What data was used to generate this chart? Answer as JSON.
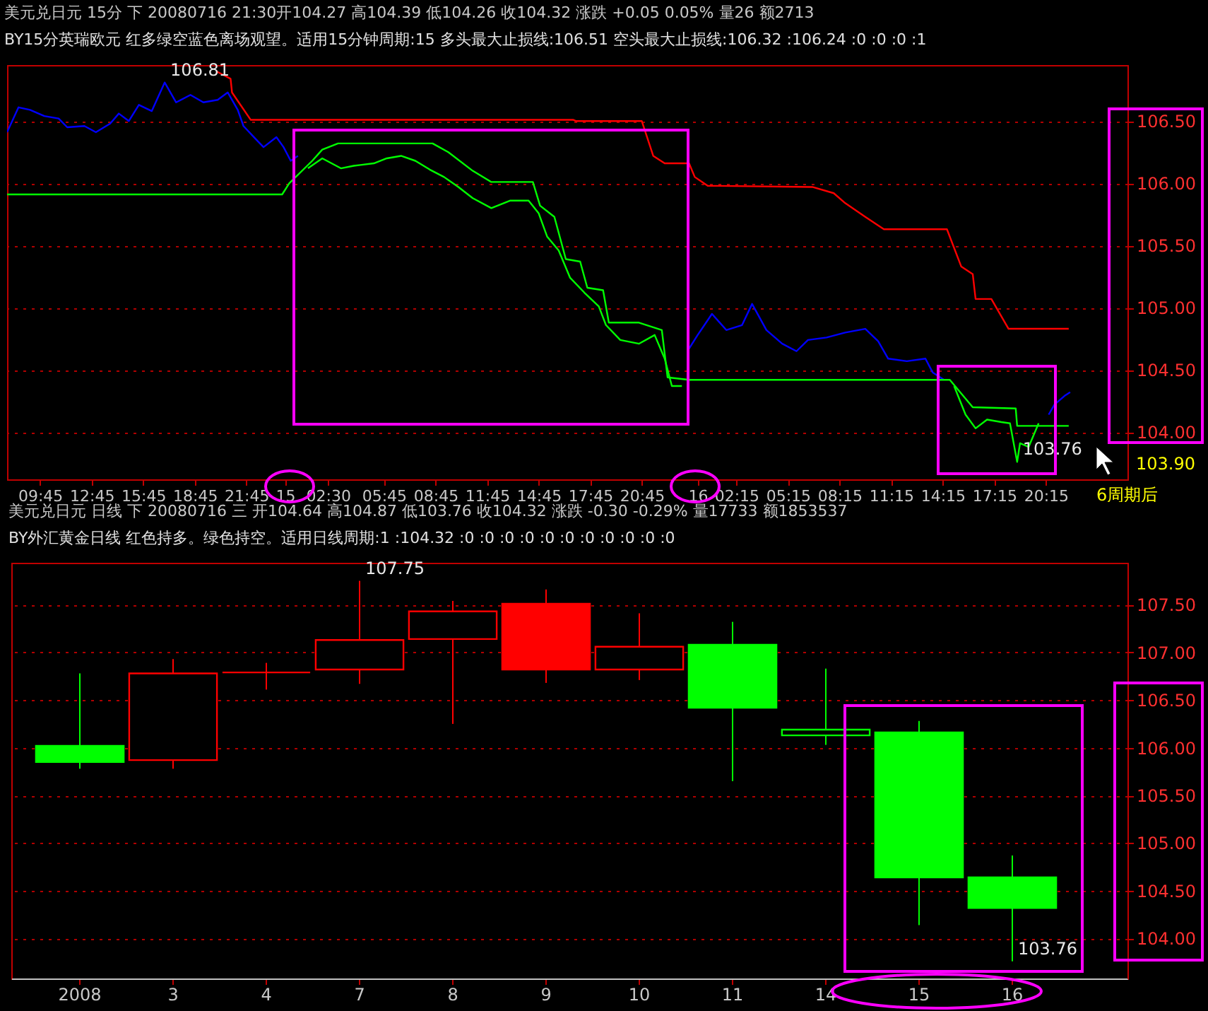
{
  "chart_data": [
    {
      "type": "line",
      "title": "美元兑日元 15分 下 20080716 21:30开104.27 高104.39 低104.26 收104.32 涨跌 +0.05 0.05% 量26 额2713",
      "subtitle": "BY15分英瑞欧元 红多绿空蓝色离场观望。适用15分钟周期:15 多头最大止损线:106.51 空头最大止损线:106.32 :106.24 :0 :0 :0 :1",
      "xlim": [
        "2008-07-14T07:50",
        "2008-07-17T01:00"
      ],
      "xticks": [
        {
          "value": "2008-07-14T09:45",
          "label": "09:45"
        },
        {
          "value": "2008-07-14T12:45",
          "label": "12:45"
        },
        {
          "value": "2008-07-14T15:45",
          "label": "15:45"
        },
        {
          "value": "2008-07-14T18:45",
          "label": "18:45"
        },
        {
          "value": "2008-07-14T21:45",
          "label": "21:45"
        },
        {
          "value": "2008-07-15",
          "label": "15"
        },
        {
          "value": "2008-07-15T02:30",
          "label": "02:30"
        },
        {
          "value": "2008-07-15T05:45",
          "label": "05:45"
        },
        {
          "value": "2008-07-15T08:45",
          "label": "08:45"
        },
        {
          "value": "2008-07-15T11:45",
          "label": "11:45"
        },
        {
          "value": "2008-07-15T14:45",
          "label": "14:45"
        },
        {
          "value": "2008-07-15T17:45",
          "label": "17:45"
        },
        {
          "value": "2008-07-15T20:45",
          "label": "20:45"
        },
        {
          "value": "2008-07-16",
          "label": "16"
        },
        {
          "value": "2008-07-16T02:15",
          "label": "02:15"
        },
        {
          "value": "2008-07-16T05:15",
          "label": "05:15"
        },
        {
          "value": "2008-07-16T08:15",
          "label": "08:15"
        },
        {
          "value": "2008-07-16T11:15",
          "label": "11:15"
        },
        {
          "value": "2008-07-16T14:15",
          "label": "14:15"
        },
        {
          "value": "2008-07-16T17:15",
          "label": "17:15"
        },
        {
          "value": "2008-07-16T20:15",
          "label": "20:15"
        }
      ],
      "ylim": [
        103.62,
        106.95
      ],
      "yticks": [
        {
          "value": 104,
          "label": "104.00"
        },
        {
          "value": 104.5,
          "label": "104.50"
        },
        {
          "value": 105,
          "label": "105.00"
        },
        {
          "value": 105.5,
          "label": "105.50"
        },
        {
          "value": 106,
          "label": "106.00"
        },
        {
          "value": 106.5,
          "label": "106.50"
        }
      ],
      "grid": "y",
      "annotations": [
        {
          "text": "106.81",
          "x": "2008-07-14T17:00",
          "y": 106.81
        },
        {
          "text": "103.76",
          "x": "2008-07-16T18:35",
          "y": 103.76
        },
        "103.90",
        "6周期后"
      ],
      "series": [
        {
          "color": "#0000ff",
          "x": [
            "2008-07-14T07:50",
            "2008-07-14T08:30",
            "2008-07-14T09:10",
            "2008-07-14T10:00",
            "2008-07-14T10:50",
            "2008-07-14T11:20",
            "2008-07-14T12:20",
            "2008-07-14T13:00",
            "2008-07-14T13:50",
            "2008-07-14T14:20",
            "2008-07-14T14:55",
            "2008-07-14T15:30",
            "2008-07-14T16:15",
            "2008-07-14T17:00",
            "2008-07-14T17:40",
            "2008-07-14T18:30",
            "2008-07-14T19:15",
            "2008-07-14T20:05",
            "2008-07-14T20:40",
            "2008-07-14T21:15",
            "2008-07-14T21:35",
            "2008-07-14T22:20",
            "2008-07-14T22:45",
            "2008-07-14T23:30",
            "2008-07-14T23:55",
            "2008-07-15T00:20",
            "2008-07-15T00:45"
          ],
          "values": [
            106.41,
            106.61,
            106.59,
            106.54,
            106.52,
            106.45,
            106.46,
            106.41,
            106.48,
            106.56,
            106.5,
            106.63,
            106.58,
            106.81,
            106.65,
            106.71,
            106.65,
            106.67,
            106.73,
            106.59,
            106.46,
            106.35,
            106.29,
            106.37,
            106.29,
            106.18,
            106.22
          ]
        },
        {
          "color": "#00ff00",
          "x": [
            "2008-07-15T01:20",
            "2008-07-15T02:10",
            "2008-07-15T03:15",
            "2008-07-15T04:00",
            "2008-07-15T05:10",
            "2008-07-15T05:55",
            "2008-07-15T06:45",
            "2008-07-15T07:35",
            "2008-07-15T08:25",
            "2008-07-15T09:15",
            "2008-07-15T10:05",
            "2008-07-15T10:55",
            "2008-07-15T12:00",
            "2008-07-15T13:05",
            "2008-07-15T14:10",
            "2008-07-15T14:45",
            "2008-07-15T15:15",
            "2008-07-15T15:55",
            "2008-07-15T16:35",
            "2008-07-15T17:25",
            "2008-07-15T18:15",
            "2008-07-15T18:40",
            "2008-07-15T19:30",
            "2008-07-15T20:35",
            "2008-07-15T21:30",
            "2008-07-15T22:05",
            "2008-07-15T22:30",
            "2008-07-15T23:05"
          ],
          "values": [
            106.12,
            106.2,
            106.12,
            106.14,
            106.16,
            106.2,
            106.22,
            106.18,
            106.11,
            106.05,
            105.97,
            105.88,
            105.8,
            105.86,
            105.86,
            105.76,
            105.57,
            105.46,
            105.24,
            105.12,
            105.01,
            104.86,
            104.74,
            104.71,
            104.78,
            104.59,
            104.37,
            104.37
          ]
        },
        {
          "color": "#0000ff",
          "x": [
            "2008-07-15T23:30",
            "2008-07-16T00:00",
            "2008-07-16T00:50",
            "2008-07-16T01:40",
            "2008-07-16T02:35",
            "2008-07-16T03:10",
            "2008-07-16T04:00",
            "2008-07-16T04:55",
            "2008-07-16T05:45",
            "2008-07-16T06:25",
            "2008-07-16T07:30",
            "2008-07-16T08:35",
            "2008-07-16T09:45",
            "2008-07-16T10:30",
            "2008-07-16T11:05",
            "2008-07-16T12:10",
            "2008-07-16T13:15",
            "2008-07-16T13:40",
            "2008-07-16T14:20"
          ],
          "values": [
            104.67,
            104.78,
            104.95,
            104.82,
            104.86,
            105.03,
            104.82,
            104.71,
            104.65,
            104.74,
            104.76,
            104.8,
            104.83,
            104.73,
            104.59,
            104.57,
            104.59,
            104.48,
            104.42
          ]
        },
        {
          "color": "#00ff00",
          "x": [
            "2008-07-16T14:55",
            "2008-07-16T15:35",
            "2008-07-16T16:10",
            "2008-07-16T16:50",
            "2008-07-16T17:40",
            "2008-07-16T18:10",
            "2008-07-16T18:35",
            "2008-07-16T18:45",
            "2008-07-16T19:15",
            "2008-07-16T19:50"
          ],
          "values": [
            104.37,
            104.14,
            104.03,
            104.1,
            104.08,
            104.07,
            103.76,
            103.91,
            103.88,
            104.07
          ]
        },
        {
          "color": "#0000ff",
          "x": [
            "2008-07-16T20:25",
            "2008-07-16T20:45",
            "2008-07-16T21:20",
            "2008-07-16T21:40"
          ],
          "values": [
            104.14,
            104.22,
            104.29,
            104.32
          ]
        },
        {
          "color": "#ff0000",
          "x": [
            "2008-07-14T20:00",
            "2008-07-14T20:50",
            "2008-07-14T20:55",
            "2008-07-14T22:00",
            "2008-07-15T16:45",
            "2008-07-15T16:55",
            "2008-07-15T20:45",
            "2008-07-15T21:25",
            "2008-07-15T22:05",
            "2008-07-15T23:30",
            "2008-07-15T23:50",
            "2008-07-16T00:35",
            "2008-07-16T06:40",
            "2008-07-16T07:55",
            "2008-07-16T08:35",
            "2008-07-16T09:45",
            "2008-07-16T10:50",
            "2008-07-16T14:30",
            "2008-07-16T15:20",
            "2008-07-16T16:00",
            "2008-07-16T16:10",
            "2008-07-16T17:05",
            "2008-07-16T18:05",
            "2008-07-16T21:35"
          ],
          "values": [
            106.9,
            106.84,
            106.73,
            106.51,
            106.51,
            106.5,
            106.5,
            106.22,
            106.16,
            106.16,
            106.05,
            105.98,
            105.97,
            105.92,
            105.84,
            105.73,
            105.63,
            105.63,
            105.33,
            105.27,
            105.07,
            105.07,
            104.83,
            104.83
          ]
        },
        {
          "color": "#00ff00",
          "x": [
            "2008-07-14T07:50",
            "2008-07-14T23:50",
            "2008-07-15T00:15",
            "2008-07-15T01:35",
            "2008-07-15T02:10",
            "2008-07-15T03:05",
            "2008-07-15T08:35",
            "2008-07-15T09:30",
            "2008-07-15T10:55",
            "2008-07-15T12:00",
            "2008-07-15T14:25",
            "2008-07-15T14:50",
            "2008-07-15T15:40",
            "2008-07-15T16:20",
            "2008-07-15T17:10",
            "2008-07-15T17:35",
            "2008-07-15T18:30",
            "2008-07-15T18:50",
            "2008-07-15T20:35",
            "2008-07-15T21:55",
            "2008-07-15T22:15",
            "2008-07-15T23:30",
            "2008-07-16T14:40",
            "2008-07-16T16:00",
            "2008-07-16T18:30",
            "2008-07-16T18:35",
            "2008-07-16T21:35"
          ],
          "values": [
            105.91,
            105.91,
            106.0,
            106.18,
            106.27,
            106.32,
            106.32,
            106.25,
            106.1,
            106.01,
            106.01,
            105.82,
            105.73,
            105.39,
            105.37,
            105.16,
            105.14,
            104.88,
            104.88,
            104.82,
            104.44,
            104.42,
            104.42,
            104.2,
            104.19,
            104.05,
            104.05
          ]
        }
      ]
    },
    {
      "type": "candlestick",
      "title": "美元兑日元 日线 下 20080716 三 开104.64 高104.87 低103.76 收104.32 涨跌 -0.30 -0.29% 量17733 额1853537",
      "subtitle": "BY外汇黄金日线 红色持多。绿色持空。适用日线周期:1 :104.32 :0 :0 :0 :0 :0 :0 :0 :0 :0 :0 :0",
      "categories": [
        "2008",
        "3",
        "4",
        "7",
        "8",
        "9",
        "10",
        "11",
        "14",
        "15",
        "16"
      ],
      "ohlc": [
        [
          106.02,
          106.78,
          105.78,
          105.85
        ],
        [
          105.87,
          106.93,
          105.78,
          106.78
        ],
        [
          106.79,
          106.89,
          106.61,
          106.79
        ],
        [
          106.82,
          107.75,
          106.67,
          107.13
        ],
        [
          107.14,
          107.54,
          106.25,
          107.43
        ],
        [
          107.51,
          107.66,
          106.68,
          106.82
        ],
        [
          106.82,
          107.41,
          106.71,
          107.06
        ],
        [
          107.08,
          107.32,
          105.65,
          106.42
        ],
        [
          106.13,
          106.83,
          106.03,
          106.19
        ],
        [
          106.16,
          106.28,
          104.14,
          104.64
        ],
        [
          104.64,
          104.87,
          103.76,
          104.32
        ]
      ],
      "colors": [
        "#00ff00",
        "#ff0000",
        "#ff0000",
        "#ff0000",
        "#ff0000",
        "#ff0000",
        "#ff0000",
        "#00ff00",
        "#00ff00",
        "#00ff00",
        "#00ff00"
      ],
      "ylim": [
        103.58,
        107.94
      ],
      "yticks": [
        {
          "value": 104,
          "label": "104.00"
        },
        {
          "value": 104.5,
          "label": "104.50"
        },
        {
          "value": 105,
          "label": "105.00"
        },
        {
          "value": 105.5,
          "label": "105.50"
        },
        {
          "value": 106,
          "label": "106.00"
        },
        {
          "value": 106.5,
          "label": "106.50"
        },
        {
          "value": 107,
          "label": "107.00"
        },
        {
          "value": 107.5,
          "label": "107.50"
        }
      ],
      "grid": "y",
      "annotations": [
        {
          "text": "107.75",
          "x": "7",
          "y": 107.75
        },
        {
          "text": "103.76",
          "x": "16",
          "y": 103.76
        }
      ]
    }
  ]
}
